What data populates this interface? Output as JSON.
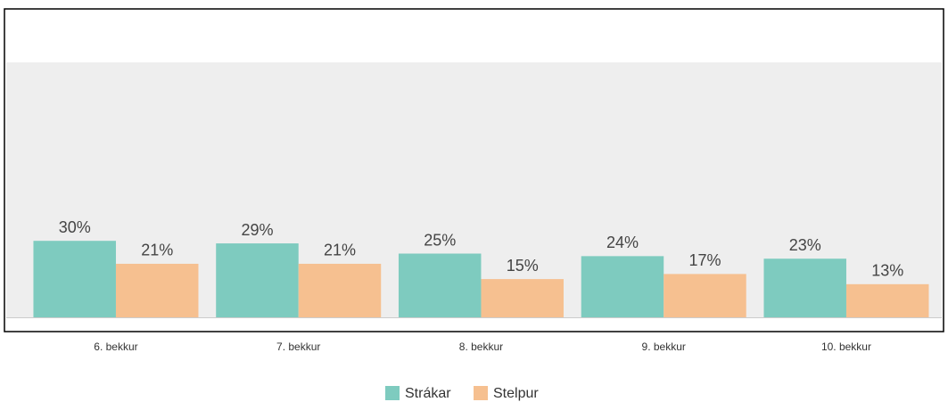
{
  "chart_data": {
    "type": "bar",
    "categories": [
      "6. bekkur",
      "7. bekkur",
      "8. bekkur",
      "9. bekkur",
      "10. bekkur"
    ],
    "series": [
      {
        "name": "Strákar",
        "color": "#7ecbbf",
        "values": [
          30,
          29,
          25,
          24,
          23
        ],
        "value_labels": [
          "30%",
          "29%",
          "25%",
          "24%",
          "23%"
        ]
      },
      {
        "name": "Stelpur",
        "color": "#f6c090",
        "values": [
          21,
          21,
          15,
          17,
          13
        ],
        "value_labels": [
          "21%",
          "21%",
          "15%",
          "17%",
          "13%"
        ]
      }
    ],
    "ylim": [
      0,
      100
    ]
  }
}
